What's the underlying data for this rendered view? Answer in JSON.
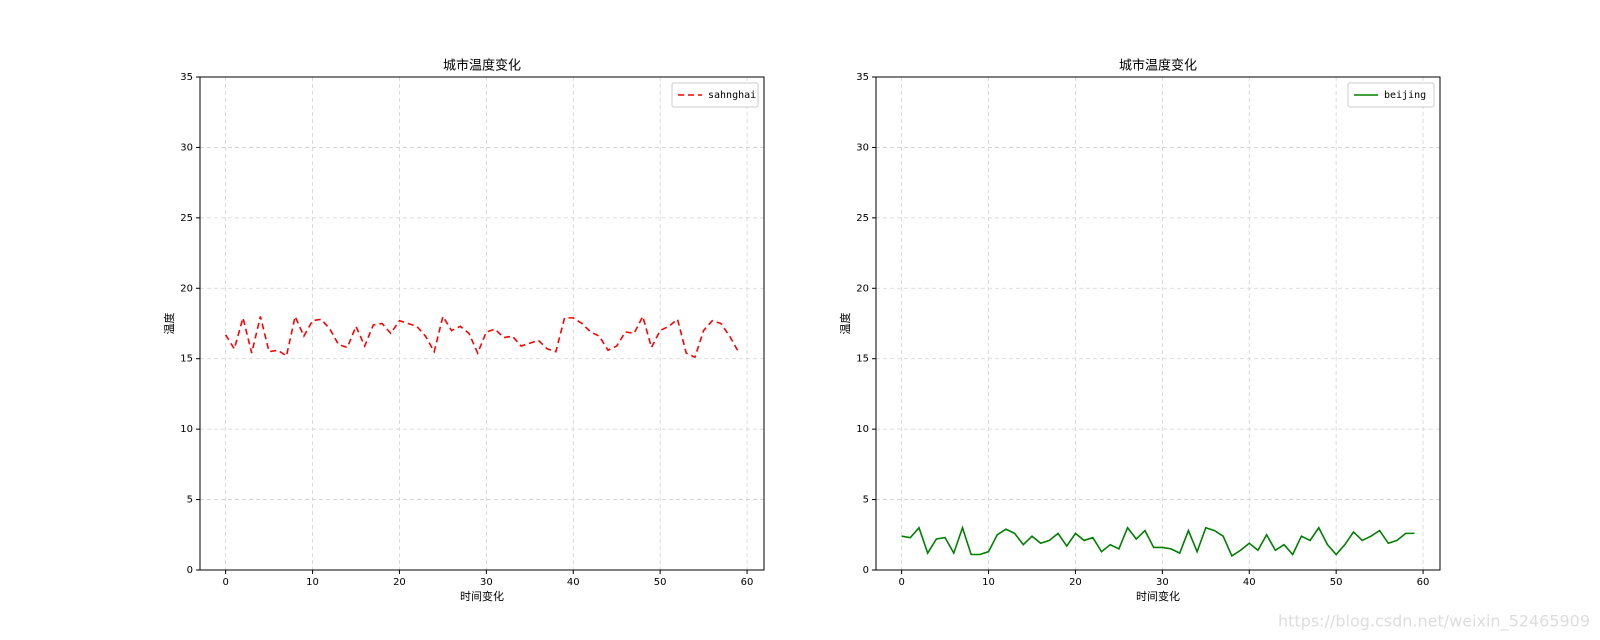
{
  "chart_data": [
    {
      "type": "line",
      "title": "城市温度变化",
      "x_label": "时间变化",
      "y_label": "温度",
      "x": [
        0,
        1,
        2,
        3,
        4,
        5,
        6,
        7,
        8,
        9,
        10,
        11,
        12,
        13,
        14,
        15,
        16,
        17,
        18,
        19,
        20,
        21,
        22,
        23,
        24,
        25,
        26,
        27,
        28,
        29,
        30,
        31,
        32,
        33,
        34,
        35,
        36,
        37,
        38,
        39,
        40,
        41,
        42,
        43,
        44,
        45,
        46,
        47,
        48,
        49,
        50,
        51,
        52,
        53,
        54,
        55,
        56,
        57,
        58,
        59
      ],
      "series": [
        {
          "name": "sahnghai",
          "color": "#ff0000",
          "linestyle": "dashed",
          "values": [
            16.7,
            15.7,
            17.9,
            15.4,
            18.0,
            15.5,
            15.6,
            15.2,
            18.0,
            16.6,
            17.7,
            17.8,
            17.1,
            16.0,
            15.8,
            17.3,
            15.9,
            17.4,
            17.5,
            16.8,
            17.7,
            17.5,
            17.3,
            16.6,
            15.5,
            18.0,
            17.0,
            17.3,
            16.8,
            15.4,
            16.9,
            17.1,
            16.5,
            16.6,
            15.9,
            16.1,
            16.3,
            15.7,
            15.5,
            17.9,
            17.9,
            17.5,
            16.9,
            16.6,
            15.6,
            15.9,
            16.9,
            16.8,
            18.0,
            15.8,
            17.0,
            17.3,
            17.8,
            15.4,
            15.1,
            17.0,
            17.7,
            17.5,
            16.6,
            15.5
          ]
        }
      ],
      "xlim": [
        -2.95,
        61.95
      ],
      "ylim": [
        0,
        35
      ],
      "xticks": [
        0,
        10,
        20,
        30,
        40,
        50,
        60
      ],
      "yticks": [
        0,
        5,
        10,
        15,
        20,
        25,
        30,
        35
      ],
      "grid": true,
      "legend": "upper right"
    },
    {
      "type": "line",
      "title": "城市温度变化",
      "x_label": "时间变化",
      "y_label": "温度",
      "x": [
        0,
        1,
        2,
        3,
        4,
        5,
        6,
        7,
        8,
        9,
        10,
        11,
        12,
        13,
        14,
        15,
        16,
        17,
        18,
        19,
        20,
        21,
        22,
        23,
        24,
        25,
        26,
        27,
        28,
        29,
        30,
        31,
        32,
        33,
        34,
        35,
        36,
        37,
        38,
        39,
        40,
        41,
        42,
        43,
        44,
        45,
        46,
        47,
        48,
        49,
        50,
        51,
        52,
        53,
        54,
        55,
        56,
        57,
        58,
        59
      ],
      "series": [
        {
          "name": "beijing",
          "color": "#008000",
          "linestyle": "solid",
          "values": [
            2.4,
            2.3,
            3.0,
            1.2,
            2.2,
            2.3,
            1.2,
            3.0,
            1.1,
            1.1,
            1.3,
            2.5,
            2.9,
            2.6,
            1.8,
            2.4,
            1.9,
            2.1,
            2.6,
            1.7,
            2.6,
            2.1,
            2.3,
            1.3,
            1.8,
            1.5,
            3.0,
            2.2,
            2.8,
            1.6,
            1.6,
            1.5,
            1.2,
            2.8,
            1.3,
            3.0,
            2.8,
            2.4,
            1.0,
            1.4,
            1.9,
            1.4,
            2.5,
            1.4,
            1.8,
            1.1,
            2.4,
            2.1,
            3.0,
            1.8,
            1.1,
            1.8,
            2.7,
            2.1,
            2.4,
            2.8,
            1.9,
            2.1,
            2.6,
            2.6
          ]
        }
      ],
      "xlim": [
        -2.95,
        61.95
      ],
      "ylim": [
        0,
        35
      ],
      "xticks": [
        0,
        10,
        20,
        30,
        40,
        50,
        60
      ],
      "yticks": [
        0,
        5,
        10,
        15,
        20,
        25,
        30,
        35
      ],
      "grid": true,
      "legend": "upper right"
    }
  ],
  "watermark": "https://blog.csdn.net/weixin_52465909"
}
